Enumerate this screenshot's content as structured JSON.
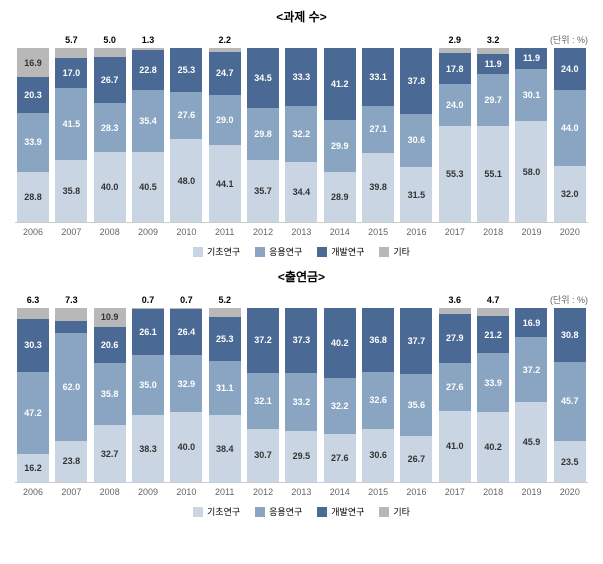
{
  "unit_label": "(단위 : %)",
  "colors": {
    "s1": "#c9d5e3",
    "s2": "#8aa5c2",
    "s3": "#4a6a95",
    "s4": "#b8b8b8"
  },
  "legend": [
    {
      "label": "기초연구",
      "color": "#c9d5e3"
    },
    {
      "label": "응용연구",
      "color": "#8aa5c2"
    },
    {
      "label": "개발연구",
      "color": "#4a6a95"
    },
    {
      "label": "기타",
      "color": "#b8b8b8"
    }
  ],
  "chart1": {
    "title": "<과제 수>",
    "years": [
      "2006",
      "2007",
      "2008",
      "2009",
      "2010",
      "2011",
      "2012",
      "2013",
      "2014",
      "2015",
      "2016",
      "2017",
      "2018",
      "2019",
      "2020"
    ],
    "data": [
      {
        "s1": 28.8,
        "s2": 33.9,
        "s3": 20.3,
        "s4": 16.9
      },
      {
        "s1": 35.8,
        "s2": 41.5,
        "s3": 17.0,
        "s4": 5.7
      },
      {
        "s1": 40.0,
        "s2": 28.3,
        "s3": 26.7,
        "s4": 5.0
      },
      {
        "s1": 40.5,
        "s2": 35.4,
        "s3": 22.8,
        "s4": 1.3
      },
      {
        "s1": 48.0,
        "s2": 27.6,
        "s3": 25.3,
        "s4": 0
      },
      {
        "s1": 44.1,
        "s2": 29.0,
        "s3": 24.7,
        "s4": 2.2
      },
      {
        "s1": 35.7,
        "s2": 29.8,
        "s3": 34.5,
        "s4": 0
      },
      {
        "s1": 34.4,
        "s2": 32.2,
        "s3": 33.3,
        "s4": 0
      },
      {
        "s1": 28.9,
        "s2": 29.9,
        "s3": 41.2,
        "s4": 0
      },
      {
        "s1": 39.8,
        "s2": 27.1,
        "s3": 33.1,
        "s4": 0
      },
      {
        "s1": 31.5,
        "s2": 30.6,
        "s3": 37.8,
        "s4": 0
      },
      {
        "s1": 55.3,
        "s2": 24.0,
        "s3": 17.8,
        "s4": 2.9
      },
      {
        "s1": 55.1,
        "s2": 29.7,
        "s3": 11.9,
        "s4": 3.2
      },
      {
        "s1": 58.0,
        "s2": 30.1,
        "s3": 11.9,
        "s4": 0
      },
      {
        "s1": 32.0,
        "s2": 44.0,
        "s3": 24.0,
        "s4": 0
      }
    ]
  },
  "chart2": {
    "title": "<출연금>",
    "years": [
      "2006",
      "2007",
      "2008",
      "2009",
      "2010",
      "2011",
      "2012",
      "2013",
      "2014",
      "2015",
      "2016",
      "2017",
      "2018",
      "2019",
      "2020"
    ],
    "data": [
      {
        "s1": 16.2,
        "s2": 47.2,
        "s3": 30.3,
        "s4": 6.3
      },
      {
        "s1": 23.8,
        "s2": 62.0,
        "s3": 6.9,
        "s4": 7.3
      },
      {
        "s1": 32.7,
        "s2": 35.8,
        "s3": 20.6,
        "s4": 10.9
      },
      {
        "s1": 38.3,
        "s2": 35.0,
        "s3": 26.1,
        "s4": 0.7
      },
      {
        "s1": 40.0,
        "s2": 32.9,
        "s3": 26.4,
        "s4": 0.7
      },
      {
        "s1": 38.4,
        "s2": 31.1,
        "s3": 25.3,
        "s4": 5.2
      },
      {
        "s1": 30.7,
        "s2": 32.1,
        "s3": 37.2,
        "s4": 0
      },
      {
        "s1": 29.5,
        "s2": 33.2,
        "s3": 37.3,
        "s4": 0
      },
      {
        "s1": 27.6,
        "s2": 32.2,
        "s3": 40.2,
        "s4": 0
      },
      {
        "s1": 30.6,
        "s2": 32.6,
        "s3": 36.8,
        "s4": 0
      },
      {
        "s1": 26.7,
        "s2": 35.6,
        "s3": 37.7,
        "s4": 0
      },
      {
        "s1": 41.0,
        "s2": 27.6,
        "s3": 27.9,
        "s4": 3.6
      },
      {
        "s1": 40.2,
        "s2": 33.9,
        "s3": 21.2,
        "s4": 4.7
      },
      {
        "s1": 45.9,
        "s2": 37.2,
        "s3": 16.9,
        "s4": 0
      },
      {
        "s1": 23.5,
        "s2": 45.7,
        "s3": 30.8,
        "s4": 0
      }
    ]
  }
}
